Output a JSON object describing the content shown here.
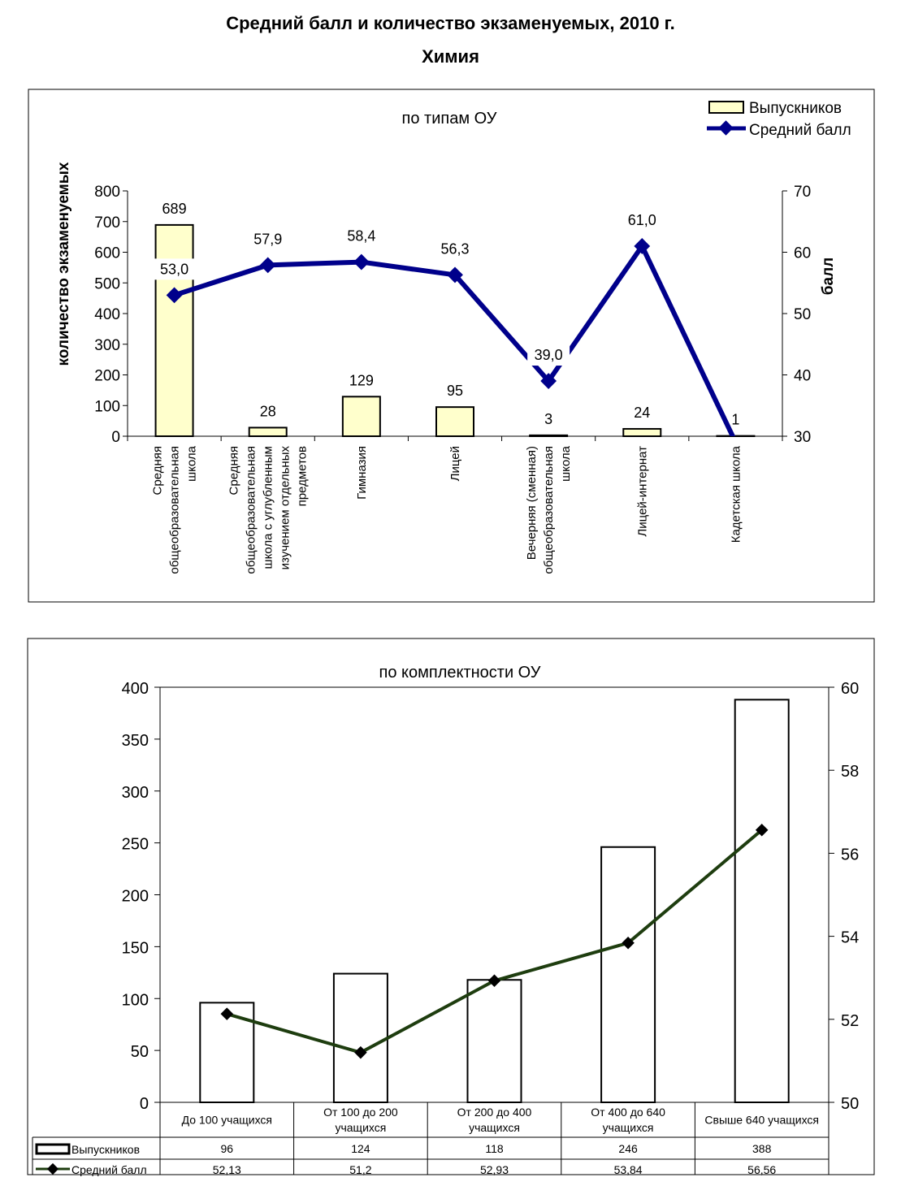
{
  "page": {
    "title": "Средний балл и количество экзаменуемых, 2010 г.",
    "subtitle": "Химия"
  },
  "chart_data": [
    {
      "type": "bar+line",
      "title": "по типам ОУ",
      "categories": [
        "Средняя общеобразовательная школа",
        "Средняя общеобразовательная школа с углубленным изучением отдельных предметов",
        "Гимназия",
        "Лицей",
        "Вечерняя (сменная) общеобразовательная школа",
        "Лицей-интернат",
        "Кадетская школа"
      ],
      "category_lines": [
        [
          "Средняя",
          "общеобразовательная",
          "школа"
        ],
        [
          "Средняя",
          "общеобразовательная",
          "школа с углубленным",
          "изучением отдельных",
          "предметов"
        ],
        [
          "Гимназия"
        ],
        [
          "Лицей"
        ],
        [
          "Вечерняя (сменная)",
          "общеобразовательная",
          "школа"
        ],
        [
          "Лицей-интернат"
        ],
        [
          "Кадетская школа"
        ]
      ],
      "series": [
        {
          "name": "Выпускников",
          "type": "bar",
          "axis": "left",
          "values": [
            689,
            28,
            129,
            95,
            3,
            24,
            1
          ],
          "labels": [
            "689",
            "28",
            "129",
            "95",
            "3",
            "24",
            "1"
          ],
          "color": "#ffffcc"
        },
        {
          "name": "Средний балл",
          "type": "line",
          "axis": "right",
          "values": [
            53.0,
            57.9,
            58.4,
            56.3,
            39.0,
            61.0,
            29.0
          ],
          "labels": [
            "53,0",
            "57,9",
            "58,4",
            "56,3",
            "39,0",
            "61,0",
            ""
          ],
          "color": "#00008b"
        }
      ],
      "ylabel_left": "количество экзаменуемых",
      "ylabel_right": "балл",
      "ylim_left": [
        0,
        800
      ],
      "yticks_left": [
        "0",
        "100",
        "200",
        "300",
        "400",
        "500",
        "600",
        "700",
        "800"
      ],
      "ylim_right": [
        30,
        70
      ],
      "yticks_right": [
        "30",
        "40",
        "50",
        "60",
        "70"
      ],
      "legend": "top-right",
      "grid": false
    },
    {
      "type": "bar+line",
      "title": "по комплектности ОУ",
      "categories": [
        "До 100 учащихся",
        "От 100 до 200 учащихся",
        "От 200 до 400 учащихся",
        "От 400 до 640 учащихся",
        "Свыше 640 учащихся"
      ],
      "category_lines": [
        [
          "До 100 учащихся"
        ],
        [
          "От 100 до 200",
          "учащихся"
        ],
        [
          "От 200 до 400",
          "учащихся"
        ],
        [
          "От 400 до 640",
          "учащихся"
        ],
        [
          "Свыше 640 учащихся"
        ]
      ],
      "series": [
        {
          "name": "Выпускников",
          "type": "bar",
          "axis": "left",
          "values": [
            96,
            124,
            118,
            246,
            388
          ],
          "labels": [
            "96",
            "124",
            "118",
            "246",
            "388"
          ],
          "color": "#ffffff"
        },
        {
          "name": "Средний балл",
          "type": "line",
          "axis": "right",
          "values": [
            52.13,
            51.2,
            52.93,
            53.84,
            56.56
          ],
          "labels": [
            "52,13",
            "51,2",
            "52,93",
            "53,84",
            "56,56"
          ],
          "color": "#1e3d0f"
        }
      ],
      "ylim_left": [
        0,
        400
      ],
      "yticks_left": [
        "0",
        "50",
        "100",
        "150",
        "200",
        "250",
        "300",
        "350",
        "400"
      ],
      "ylim_right": [
        50,
        60
      ],
      "yticks_right": [
        "50",
        "52",
        "54",
        "56",
        "58",
        "60"
      ],
      "legend": "data-table",
      "grid": false
    }
  ]
}
